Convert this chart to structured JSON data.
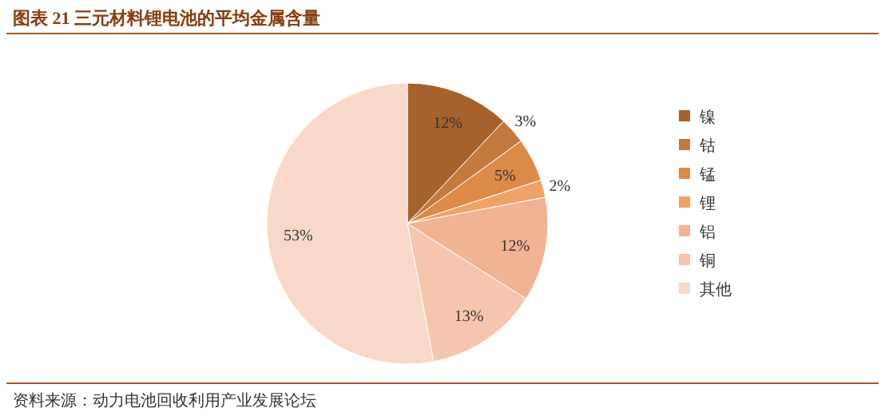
{
  "chart_data": {
    "type": "pie",
    "title": "图表 21  三元材料锂电池的平均金属含量",
    "categories": [
      "镍",
      "钴",
      "锰",
      "锂",
      "铝",
      "铜",
      "其他"
    ],
    "values": [
      12,
      3,
      5,
      2,
      12,
      13,
      53
    ],
    "value_labels": [
      "12%",
      "3%",
      "5%",
      "2%",
      "12%",
      "13%",
      "53%"
    ],
    "colors": [
      "#a5622c",
      "#c27a3e",
      "#dc8a48",
      "#f0a266",
      "#f2b393",
      "#f5c6ad",
      "#f8d9c9"
    ],
    "legend": "right",
    "annotations": [
      "资料来源：动力电池回收利用产业发展论坛"
    ]
  }
}
